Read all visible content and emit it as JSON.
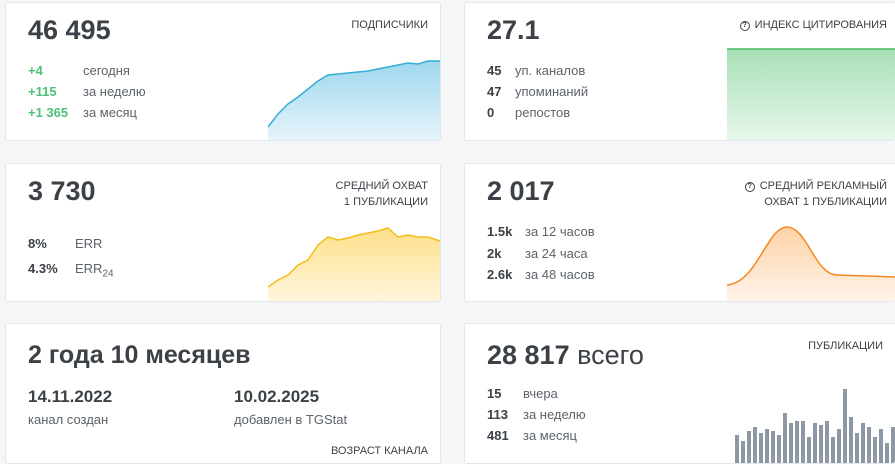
{
  "cards": [
    {
      "value": "46 495",
      "label": [
        "ПОДПИСЧИКИ"
      ],
      "stats": [
        {
          "value": "+4",
          "label": "сегодня"
        },
        {
          "value": "+115",
          "label": "за неделю"
        },
        {
          "value": "+1 365",
          "label": "за месяц"
        }
      ]
    },
    {
      "value": "27.1",
      "label": [
        "ИНДЕКС ЦИТИРОВАНИЯ"
      ],
      "stats": [
        {
          "value": "45",
          "label": "уп. каналов"
        },
        {
          "value": "47",
          "label": "упоминаний"
        },
        {
          "value": "0",
          "label": "репостов"
        }
      ]
    },
    {
      "value": "3 730",
      "label": [
        "СРЕДНИЙ ОХВАТ",
        "1 ПУБЛИКАЦИИ"
      ],
      "stats": [
        {
          "value": "8%",
          "label": "ERR"
        },
        {
          "value": "4.3%",
          "label": "ERR",
          "label_sub": "24"
        }
      ]
    },
    {
      "value": "2 017",
      "label": [
        "СРЕДНИЙ РЕКЛАМНЫЙ",
        "ОХВАТ 1 ПУБЛИКАЦИИ"
      ],
      "stats": [
        {
          "value": "1.5k",
          "label": "за 12 часов"
        },
        {
          "value": "2k",
          "label": "за 24 часа"
        },
        {
          "value": "2.6k",
          "label": "за 48 часов"
        }
      ]
    },
    {
      "value": "2 года 10 месяцев",
      "label": [
        "ВОЗРАСТ КАНАЛА"
      ],
      "stats": [
        {
          "value": "14.11.2022",
          "label": "канал создан"
        },
        {
          "value": "10.02.2025",
          "label": "добавлен в TGStat"
        }
      ]
    },
    {
      "value": "28 817",
      "value_suffix": "всего",
      "label": [
        "ПУБЛИКАЦИИ"
      ],
      "stats": [
        {
          "value": "15",
          "label": "вчера"
        },
        {
          "value": "113",
          "label": "за неделю"
        },
        {
          "value": "481",
          "label": "за месяц"
        }
      ]
    }
  ]
}
